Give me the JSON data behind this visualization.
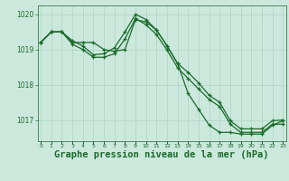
{
  "title": "Graphe pression niveau de la mer (hPa)",
  "background_color": "#cce8dd",
  "line_color": "#1a6b2a",
  "grid_color": "#aad4c4",
  "hours": [
    0,
    1,
    2,
    3,
    4,
    5,
    6,
    7,
    8,
    9,
    10,
    11,
    12,
    13,
    14,
    15,
    16,
    17,
    18,
    19,
    20,
    21,
    22,
    23
  ],
  "series": [
    [
      1019.2,
      1019.5,
      1019.5,
      1019.25,
      1019.1,
      1018.85,
      1018.88,
      1019.05,
      1019.5,
      1020.0,
      1019.85,
      1019.55,
      1019.1,
      1018.6,
      1018.35,
      1018.05,
      1017.7,
      1017.5,
      1016.98,
      1016.75,
      1016.75,
      1016.75,
      1016.98,
      1017.0
    ],
    [
      1019.2,
      1019.5,
      1019.5,
      1019.15,
      1019.0,
      1018.78,
      1018.78,
      1018.88,
      1019.3,
      1019.88,
      1019.7,
      1019.42,
      1018.98,
      1018.48,
      1018.18,
      1017.88,
      1017.58,
      1017.38,
      1016.88,
      1016.65,
      1016.65,
      1016.65,
      1016.88,
      1016.88
    ],
    [
      1019.2,
      1019.5,
      1019.5,
      1019.2,
      1019.2,
      1019.2,
      1019.0,
      1018.95,
      1019.0,
      1019.85,
      1019.78,
      1019.55,
      1019.1,
      1018.6,
      1017.75,
      1017.3,
      1016.85,
      1016.65,
      1016.65,
      1016.6,
      1016.6,
      1016.6,
      1016.85,
      1016.98
    ]
  ],
  "ylim": [
    1016.4,
    1020.25
  ],
  "yticks": [
    1017,
    1018,
    1019,
    1020
  ],
  "xlim": [
    -0.3,
    23.3
  ],
  "title_fontsize": 7.5
}
